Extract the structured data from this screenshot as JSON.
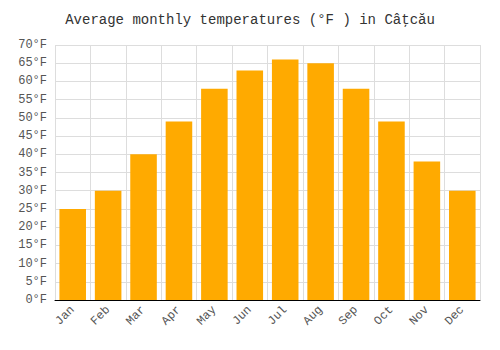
{
  "chart_data": {
    "type": "bar",
    "title": "Average monthly temperatures (°F ) in Câţcău",
    "categories": [
      "Jan",
      "Feb",
      "Mar",
      "Apr",
      "May",
      "Jun",
      "Jul",
      "Aug",
      "Sep",
      "Oct",
      "Nov",
      "Dec"
    ],
    "values": [
      25,
      30,
      40,
      49,
      58,
      63,
      66,
      65,
      58,
      49,
      38,
      30
    ],
    "color": "#FFAA00",
    "ylim": [
      0,
      70
    ],
    "yticks": [
      {
        "value": 0,
        "label": "0°F"
      },
      {
        "value": 5,
        "label": "5°F"
      },
      {
        "value": 10,
        "label": "10°F"
      },
      {
        "value": 15,
        "label": "15°F"
      },
      {
        "value": 20,
        "label": "20°F"
      },
      {
        "value": 25,
        "label": "25°F"
      },
      {
        "value": 30,
        "label": "30°F"
      },
      {
        "value": 35,
        "label": "35°F"
      },
      {
        "value": 40,
        "label": "40°F"
      },
      {
        "value": 45,
        "label": "45°F"
      },
      {
        "value": 50,
        "label": "50°F"
      },
      {
        "value": 55,
        "label": "55°F"
      },
      {
        "value": 60,
        "label": "60°F"
      },
      {
        "value": 65,
        "label": "65°F"
      },
      {
        "value": 70,
        "label": "70°F"
      }
    ],
    "grid": true
  }
}
